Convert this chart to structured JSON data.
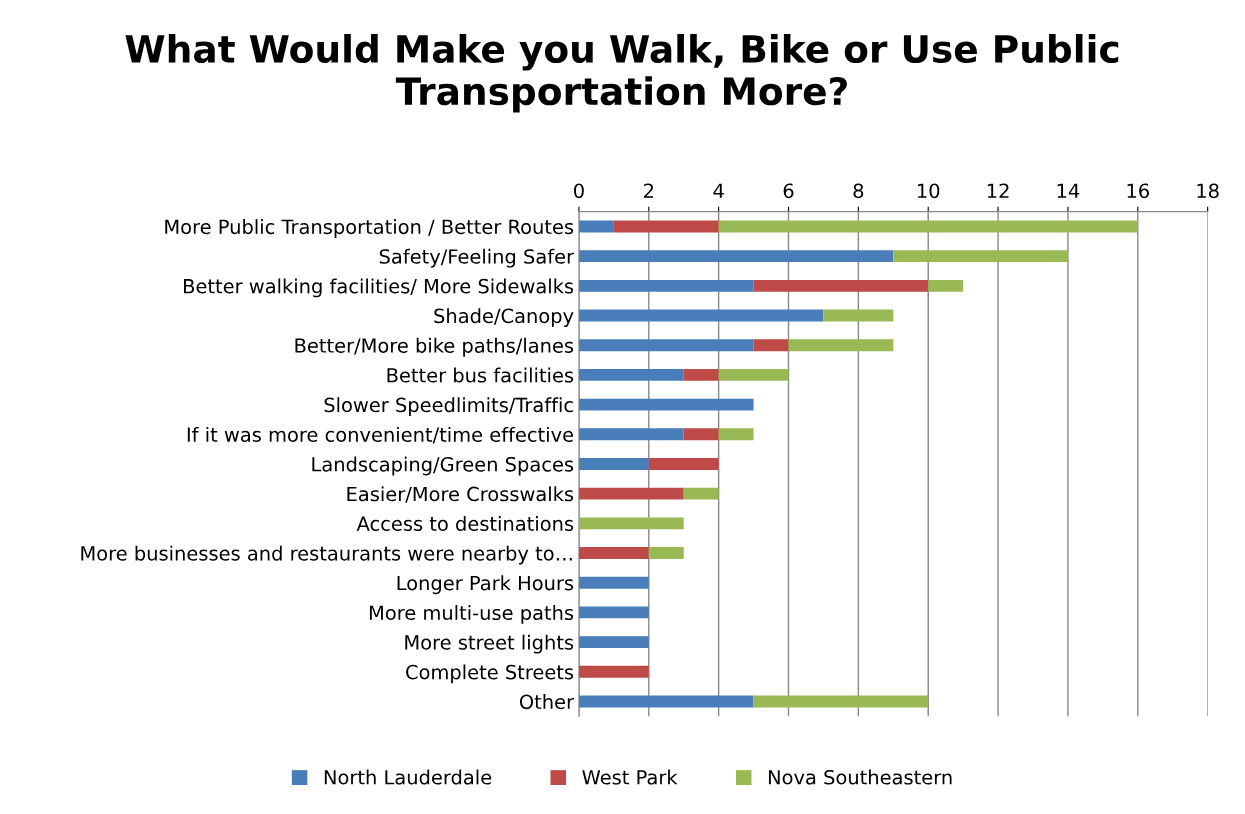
{
  "chart_data": {
    "type": "bar",
    "orientation": "horizontal",
    "stacked": true,
    "title": "What Would Make you Walk, Bike or Use Public Transportation More?",
    "categories": [
      "More Public Transportation / Better Routes",
      "Safety/Feeling Safer",
      "Better walking facilities/ More Sidewalks",
      "Shade/Canopy",
      "Better/More bike paths/lanes",
      "Better bus facilities",
      "Slower Speedlimits/Traffic",
      "If it was more convenient/time effective",
      "Landscaping/Green Spaces",
      "Easier/More Crosswalks",
      "Access to destinations",
      "More businesses and restaurants were nearby to…",
      "Longer Park Hours",
      "More multi-use paths",
      "More street lights",
      "Complete Streets",
      "Other"
    ],
    "series": [
      {
        "name": "North Lauderdale",
        "color": "#4a7ebb",
        "values": [
          1,
          9,
          5,
          7,
          5,
          3,
          5,
          3,
          2,
          0,
          0,
          0,
          2,
          2,
          2,
          0,
          5
        ]
      },
      {
        "name": "West Park",
        "color": "#be4b48",
        "values": [
          3,
          0,
          5,
          0,
          1,
          1,
          0,
          1,
          2,
          3,
          0,
          2,
          0,
          0,
          0,
          2,
          0
        ]
      },
      {
        "name": "Nova Southeastern",
        "color": "#98b954",
        "values": [
          12,
          5,
          1,
          2,
          3,
          2,
          0,
          1,
          0,
          1,
          3,
          1,
          0,
          0,
          0,
          0,
          5
        ]
      }
    ],
    "xlim": [
      0,
      18
    ],
    "xticks": [
      0,
      2,
      4,
      6,
      8,
      10,
      12,
      14,
      16,
      18
    ],
    "grid": "x",
    "legend": "bottom"
  }
}
